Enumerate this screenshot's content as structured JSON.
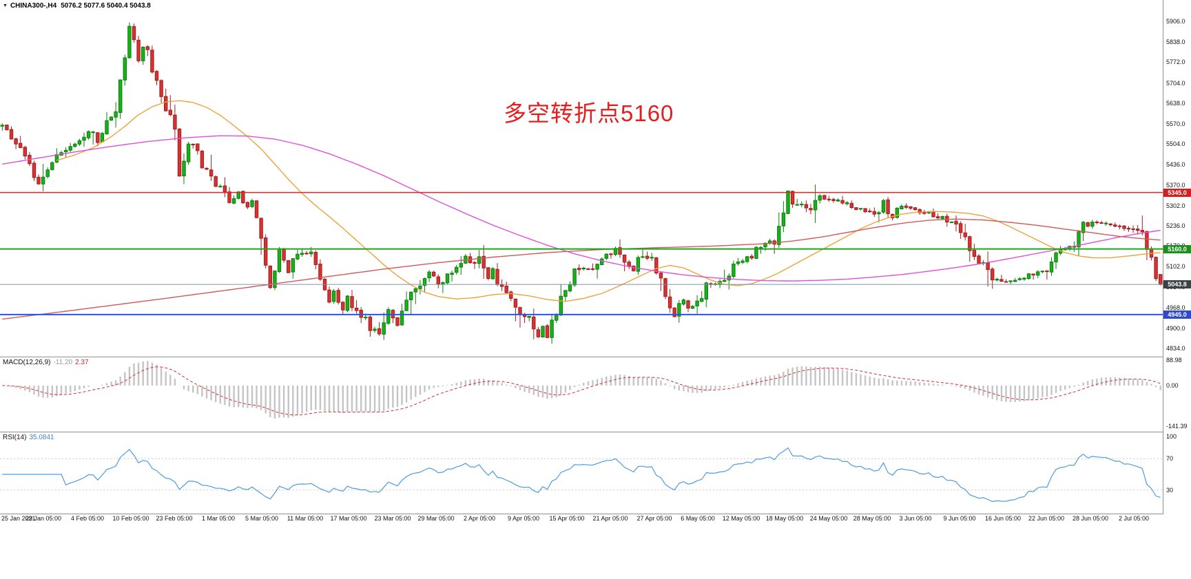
{
  "header": {
    "symbol": "CHINA300-,H4",
    "ohlc": "5076.2 5077.6 5040.4 5043.8"
  },
  "icons": {
    "collapse_triangle": "▼"
  },
  "annotation": {
    "text": "多空转折点5160",
    "color": "#e81c1c"
  },
  "colors": {
    "candle_up": {
      "fill": "#17b217",
      "border": "#0b7e0b"
    },
    "candle_down": {
      "fill": "#d83232",
      "border": "#a21c1c"
    },
    "macd_hist": "#c4c4c4",
    "macd_signal": "#d62b2b",
    "rsi_line": "#4d9be0",
    "rsi_level": "#c8c8c8",
    "separator": "#8f8f8f",
    "axis_text": "#111111"
  },
  "price_axis": {
    "top_price": 5976,
    "bottom_price": 4807,
    "labels": [
      "5906.0",
      "5838.0",
      "5772.0",
      "5704.0",
      "5638.0",
      "5570.0",
      "5504.0",
      "5436.0",
      "5370.0",
      "5302.0",
      "5236.0",
      "5170.0",
      "5102.0",
      "5034.0",
      "4968.0",
      "4900.0",
      "4834.0"
    ],
    "badges": [
      {
        "text": "5345.0",
        "bg": "#d02020",
        "price": 5345.0
      },
      {
        "text": "5160.0",
        "bg": "#1e8f1e",
        "price": 5160.0
      },
      {
        "text": "5043.8",
        "bg": "#3c4148",
        "price": 5043.8
      },
      {
        "text": "4945.0",
        "bg": "#2d49d0",
        "price": 4945.0
      }
    ]
  },
  "time_axis": {
    "labels": [
      "25 Jan 2021",
      "29 Jan 05:00",
      "4 Feb 05:00",
      "10 Feb 05:00",
      "23 Feb 05:00",
      "1 Mar 05:00",
      "5 Mar 05:00",
      "11 Mar 05:00",
      "17 Mar 05:00",
      "23 Mar 05:00",
      "29 Mar 05:00",
      "2 Apr 05:00",
      "9 Apr 05:00",
      "15 Apr 05:00",
      "21 Apr 05:00",
      "27 Apr 05:00",
      "6 May 05:00",
      "12 May 05:00",
      "18 May 05:00",
      "24 May 05:00",
      "28 May 05:00",
      "3 Jun 05:00",
      "9 Jun 05:00",
      "16 Jun 05:00",
      "22 Jun 05:00",
      "28 Jun 05:00",
      "2 Jul 05:00"
    ]
  },
  "chart_data": {
    "type": "candlestick",
    "symbol": "CHINA300-",
    "timeframe": "H4",
    "num_candles": 256,
    "price_range_visible": [
      4834.0,
      5906.0
    ],
    "x_range": [
      "25 Jan 2021",
      "2 Jul 2021 05:00"
    ],
    "ohlc_current": {
      "open": 5076.2,
      "high": 5077.6,
      "low": 5040.4,
      "close": 5043.8
    },
    "price_path_anchors": [
      [
        0,
        5555
      ],
      [
        2,
        5515
      ],
      [
        4,
        5485
      ],
      [
        6,
        5430
      ],
      [
        8,
        5370
      ],
      [
        10,
        5430
      ],
      [
        13,
        5470
      ],
      [
        16,
        5505
      ],
      [
        19,
        5545
      ],
      [
        21,
        5510
      ],
      [
        23,
        5570
      ],
      [
        25,
        5625
      ],
      [
        27,
        5770
      ],
      [
        28,
        5900
      ],
      [
        29,
        5855
      ],
      [
        30,
        5790
      ],
      [
        31,
        5825
      ],
      [
        32,
        5800
      ],
      [
        34,
        5705
      ],
      [
        36,
        5605
      ],
      [
        38,
        5560
      ],
      [
        39,
        5395
      ],
      [
        41,
        5505
      ],
      [
        43,
        5465
      ],
      [
        45,
        5405
      ],
      [
        47,
        5360
      ],
      [
        48,
        5375
      ],
      [
        50,
        5305
      ],
      [
        52,
        5345
      ],
      [
        54,
        5295
      ],
      [
        55,
        5325
      ],
      [
        56,
        5265
      ],
      [
        57,
        5185
      ],
      [
        58,
        5095
      ],
      [
        59,
        5035
      ],
      [
        61,
        5155
      ],
      [
        63,
        5085
      ],
      [
        64,
        5135
      ],
      [
        66,
        5145
      ],
      [
        68,
        5155
      ],
      [
        70,
        5065
      ],
      [
        72,
        4985
      ],
      [
        73,
        5025
      ],
      [
        75,
        4965
      ],
      [
        76,
        5005
      ],
      [
        78,
        4945
      ],
      [
        80,
        4935
      ],
      [
        81,
        4905
      ],
      [
        83,
        4895
      ],
      [
        85,
        4965
      ],
      [
        87,
        4905
      ],
      [
        89,
        4975
      ],
      [
        91,
        5035
      ],
      [
        93,
        5055
      ],
      [
        94,
        5085
      ],
      [
        96,
        5045
      ],
      [
        98,
        5075
      ],
      [
        100,
        5105
      ],
      [
        102,
        5135
      ],
      [
        104,
        5115
      ],
      [
        105,
        5135
      ],
      [
        107,
        5065
      ],
      [
        108,
        5095
      ],
      [
        110,
        5025
      ],
      [
        112,
        5015
      ],
      [
        114,
        4945
      ],
      [
        116,
        4935
      ],
      [
        118,
        4875
      ],
      [
        119,
        4905
      ],
      [
        120,
        4875
      ],
      [
        122,
        4955
      ],
      [
        124,
        5025
      ],
      [
        126,
        5085
      ],
      [
        128,
        5095
      ],
      [
        130,
        5095
      ],
      [
        132,
        5135
      ],
      [
        134,
        5145
      ],
      [
        135,
        5165
      ],
      [
        137,
        5105
      ],
      [
        139,
        5095
      ],
      [
        141,
        5135
      ],
      [
        143,
        5125
      ],
      [
        145,
        5055
      ],
      [
        147,
        4965
      ],
      [
        148,
        4935
      ],
      [
        150,
        4995
      ],
      [
        151,
        4965
      ],
      [
        153,
        4975
      ],
      [
        155,
        5035
      ],
      [
        157,
        5045
      ],
      [
        159,
        5055
      ],
      [
        161,
        5115
      ],
      [
        163,
        5125
      ],
      [
        165,
        5135
      ],
      [
        166,
        5165
      ],
      [
        168,
        5175
      ],
      [
        170,
        5185
      ],
      [
        171,
        5235
      ],
      [
        172,
        5285
      ],
      [
        173,
        5345
      ],
      [
        174,
        5315
      ],
      [
        176,
        5305
      ],
      [
        178,
        5295
      ],
      [
        180,
        5335
      ],
      [
        182,
        5325
      ],
      [
        184,
        5315
      ],
      [
        186,
        5305
      ],
      [
        188,
        5295
      ],
      [
        190,
        5285
      ],
      [
        192,
        5275
      ],
      [
        194,
        5315
      ],
      [
        196,
        5265
      ],
      [
        198,
        5305
      ],
      [
        200,
        5295
      ],
      [
        202,
        5285
      ],
      [
        204,
        5275
      ],
      [
        206,
        5265
      ],
      [
        208,
        5255
      ],
      [
        210,
        5245
      ],
      [
        212,
        5185
      ],
      [
        214,
        5125
      ],
      [
        216,
        5115
      ],
      [
        218,
        5065
      ],
      [
        220,
        5055
      ],
      [
        222,
        5055
      ],
      [
        224,
        5065
      ],
      [
        226,
        5075
      ],
      [
        228,
        5085
      ],
      [
        230,
        5095
      ],
      [
        232,
        5155
      ],
      [
        234,
        5165
      ],
      [
        236,
        5175
      ],
      [
        238,
        5235
      ],
      [
        240,
        5245
      ],
      [
        242,
        5245
      ],
      [
        244,
        5238
      ],
      [
        246,
        5232
      ],
      [
        248,
        5228
      ],
      [
        250,
        5222
      ],
      [
        251,
        5205
      ],
      [
        252,
        5172
      ],
      [
        253,
        5122
      ],
      [
        254,
        5078
      ],
      [
        255,
        5043.8
      ]
    ],
    "horizontal_levels": [
      {
        "label": "5345.0",
        "price": 5345.0,
        "color": "#e32222",
        "width": 1.5
      },
      {
        "label": "5160.0",
        "price": 5160.0,
        "color": "#1ea51e",
        "width": 2,
        "note": "多空转折点"
      },
      {
        "label": "5043.8",
        "price": 5043.8,
        "color": "#7d90a8",
        "width": 1,
        "note": "current price"
      },
      {
        "label": "4945.0",
        "price": 4945.0,
        "color": "#2d53e0",
        "width": 2
      }
    ],
    "moving_averages": [
      {
        "name": "fast",
        "color": "#eca33a",
        "anchors": [
          [
            12,
            5450
          ],
          [
            16,
            5468
          ],
          [
            20,
            5492
          ],
          [
            24,
            5528
          ],
          [
            27,
            5562
          ],
          [
            30,
            5600
          ],
          [
            33,
            5626
          ],
          [
            36,
            5642
          ],
          [
            39,
            5646
          ],
          [
            42,
            5640
          ],
          [
            45,
            5624
          ],
          [
            48,
            5598
          ],
          [
            51,
            5564
          ],
          [
            54,
            5528
          ],
          [
            57,
            5488
          ],
          [
            60,
            5438
          ],
          [
            63,
            5388
          ],
          [
            66,
            5342
          ],
          [
            69,
            5302
          ],
          [
            72,
            5266
          ],
          [
            75,
            5228
          ],
          [
            78,
            5188
          ],
          [
            81,
            5148
          ],
          [
            84,
            5108
          ],
          [
            87,
            5072
          ],
          [
            90,
            5042
          ],
          [
            93,
            5018
          ],
          [
            96,
            5004
          ],
          [
            100,
            4996
          ],
          [
            104,
            5000
          ],
          [
            108,
            5010
          ],
          [
            112,
            5014
          ],
          [
            116,
            5006
          ],
          [
            120,
            4994
          ],
          [
            124,
            4988
          ],
          [
            128,
            4998
          ],
          [
            132,
            5014
          ],
          [
            136,
            5040
          ],
          [
            140,
            5068
          ],
          [
            144,
            5096
          ],
          [
            147,
            5106
          ],
          [
            150,
            5098
          ],
          [
            153,
            5078
          ],
          [
            156,
            5058
          ],
          [
            159,
            5044
          ],
          [
            162,
            5040
          ],
          [
            165,
            5046
          ],
          [
            168,
            5062
          ],
          [
            171,
            5082
          ],
          [
            174,
            5106
          ],
          [
            177,
            5130
          ],
          [
            180,
            5154
          ],
          [
            183,
            5178
          ],
          [
            186,
            5202
          ],
          [
            189,
            5226
          ],
          [
            192,
            5246
          ],
          [
            195,
            5262
          ],
          [
            198,
            5274
          ],
          [
            201,
            5280
          ],
          [
            205,
            5283
          ],
          [
            209,
            5281
          ],
          [
            213,
            5276
          ],
          [
            216,
            5268
          ],
          [
            219,
            5252
          ],
          [
            222,
            5232
          ],
          [
            225,
            5210
          ],
          [
            228,
            5188
          ],
          [
            231,
            5166
          ],
          [
            234,
            5148
          ],
          [
            237,
            5137
          ],
          [
            240,
            5131
          ],
          [
            244,
            5131
          ],
          [
            248,
            5137
          ],
          [
            252,
            5144
          ],
          [
            255,
            5148
          ]
        ]
      },
      {
        "name": "mid",
        "color": "#e24fd4",
        "anchors": [
          [
            0,
            5438
          ],
          [
            8,
            5458
          ],
          [
            16,
            5478
          ],
          [
            24,
            5496
          ],
          [
            32,
            5512
          ],
          [
            40,
            5524
          ],
          [
            48,
            5531
          ],
          [
            54,
            5530
          ],
          [
            60,
            5520
          ],
          [
            66,
            5500
          ],
          [
            72,
            5472
          ],
          [
            78,
            5438
          ],
          [
            84,
            5400
          ],
          [
            90,
            5358
          ],
          [
            96,
            5316
          ],
          [
            102,
            5276
          ],
          [
            108,
            5238
          ],
          [
            114,
            5204
          ],
          [
            120,
            5172
          ],
          [
            126,
            5144
          ],
          [
            132,
            5121
          ],
          [
            138,
            5102
          ],
          [
            144,
            5087
          ],
          [
            150,
            5075
          ],
          [
            156,
            5066
          ],
          [
            162,
            5060
          ],
          [
            168,
            5056
          ],
          [
            174,
            5055
          ],
          [
            180,
            5057
          ],
          [
            186,
            5061
          ],
          [
            192,
            5068
          ],
          [
            198,
            5076
          ],
          [
            204,
            5087
          ],
          [
            210,
            5099
          ],
          [
            216,
            5113
          ],
          [
            222,
            5129
          ],
          [
            228,
            5146
          ],
          [
            234,
            5163
          ],
          [
            240,
            5181
          ],
          [
            246,
            5199
          ],
          [
            250,
            5210
          ],
          [
            255,
            5221
          ]
        ]
      },
      {
        "name": "slow",
        "color": "#d45858",
        "anchors": [
          [
            0,
            4930
          ],
          [
            12,
            4952
          ],
          [
            24,
            4975
          ],
          [
            36,
            4998
          ],
          [
            48,
            5022
          ],
          [
            60,
            5046
          ],
          [
            72,
            5070
          ],
          [
            84,
            5094
          ],
          [
            96,
            5115
          ],
          [
            108,
            5133
          ],
          [
            120,
            5148
          ],
          [
            132,
            5158
          ],
          [
            144,
            5164
          ],
          [
            156,
            5169
          ],
          [
            168,
            5177
          ],
          [
            174,
            5186
          ],
          [
            180,
            5198
          ],
          [
            186,
            5214
          ],
          [
            192,
            5230
          ],
          [
            198,
            5244
          ],
          [
            204,
            5254
          ],
          [
            210,
            5258
          ],
          [
            216,
            5255
          ],
          [
            222,
            5247
          ],
          [
            228,
            5237
          ],
          [
            234,
            5225
          ],
          [
            240,
            5213
          ],
          [
            246,
            5201
          ],
          [
            250,
            5195
          ],
          [
            255,
            5189
          ]
        ]
      }
    ],
    "macd": {
      "label": "MACD(12,26,9)",
      "value_text": "-11.20",
      "signal_text": "2.37",
      "params": [
        12,
        26,
        9
      ],
      "current_values": [
        -11.2,
        2.37
      ],
      "axis_labels": [
        "88.98",
        "0.00",
        "-141.39"
      ],
      "axis_values": [
        88.98,
        0,
        -141.39
      ]
    },
    "rsi": {
      "label": "RSI(14)",
      "value_text": "35.0841",
      "params": [
        14
      ],
      "current_value": 35.0841,
      "levels": [
        70,
        30
      ],
      "axis_labels": [
        "100",
        "70",
        "30"
      ],
      "axis_values": [
        100,
        70,
        30
      ]
    }
  }
}
